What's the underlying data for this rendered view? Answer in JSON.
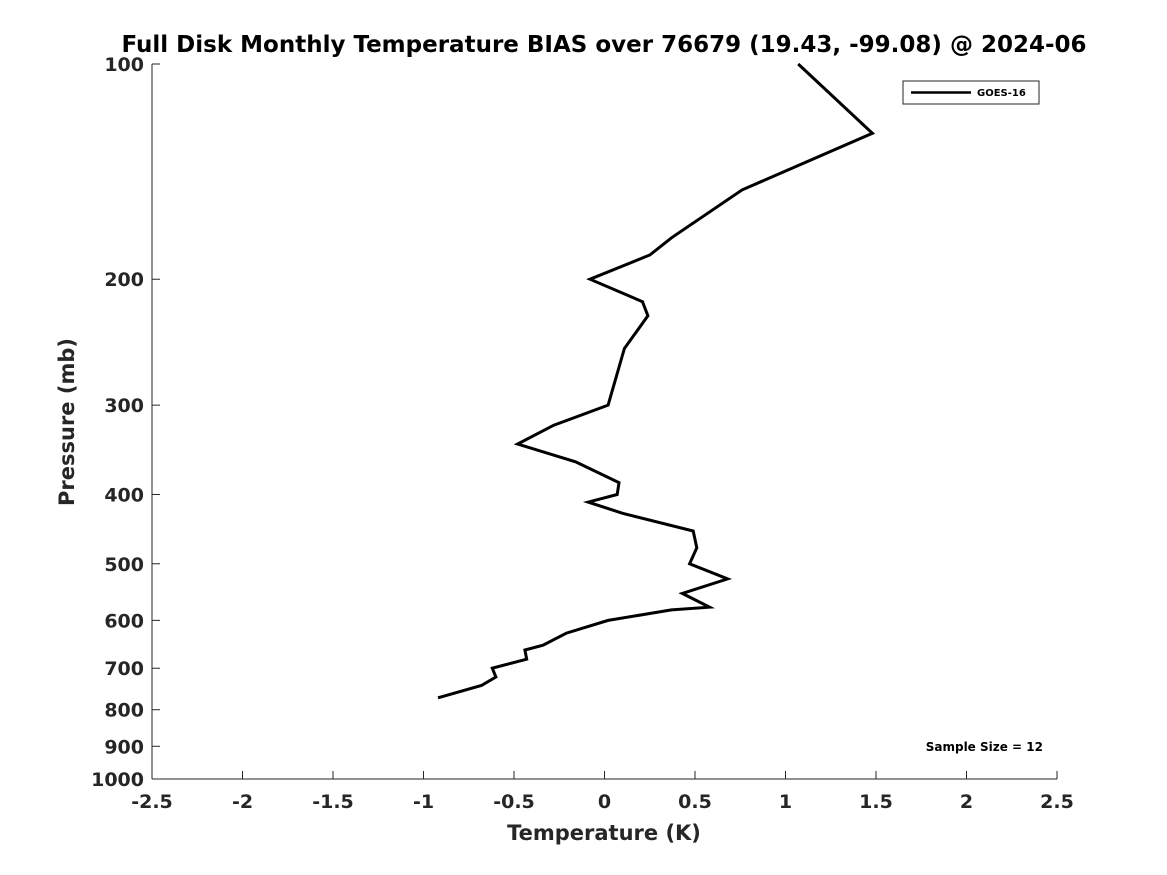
{
  "chart_data": {
    "type": "line",
    "title": "Full Disk Monthly Temperature BIAS over 76679 (19.43, -99.08) @ 2024-06",
    "xlabel": "Temperature (K)",
    "ylabel": "Pressure (mb)",
    "xlim": [
      -2.5,
      2.5
    ],
    "ylim": [
      100,
      1000
    ],
    "y_scale": "log",
    "y_reversed": true,
    "x_ticks": [
      -2.5,
      -2,
      -1.5,
      -1,
      -0.5,
      0,
      0.5,
      1,
      1.5,
      2,
      2.5
    ],
    "x_tick_labels": [
      "-2.5",
      "-2",
      "-1.5",
      "-1",
      "-0.5",
      "0",
      "0.5",
      "1",
      "1.5",
      "2",
      "2.5"
    ],
    "y_ticks": [
      100,
      200,
      300,
      400,
      500,
      600,
      700,
      800,
      900,
      1000
    ],
    "y_tick_labels": [
      "100",
      "200",
      "300",
      "400",
      "500",
      "600",
      "700",
      "800",
      "900",
      "1000"
    ],
    "grid": false,
    "legend": {
      "position": "top-right",
      "entries": [
        "GOES-16"
      ]
    },
    "annotation": "Sample Size = 12",
    "series": [
      {
        "name": "GOES-16",
        "color": "#000000",
        "points": [
          {
            "x": 1.07,
            "p": 100
          },
          {
            "x": 1.48,
            "p": 125
          },
          {
            "x": 0.76,
            "p": 150
          },
          {
            "x": 0.37,
            "p": 175
          },
          {
            "x": 0.25,
            "p": 185
          },
          {
            "x": -0.08,
            "p": 200
          },
          {
            "x": 0.21,
            "p": 215
          },
          {
            "x": 0.24,
            "p": 225
          },
          {
            "x": 0.11,
            "p": 250
          },
          {
            "x": 0.02,
            "p": 300
          },
          {
            "x": -0.28,
            "p": 320
          },
          {
            "x": -0.48,
            "p": 340
          },
          {
            "x": -0.16,
            "p": 360
          },
          {
            "x": 0.08,
            "p": 385
          },
          {
            "x": 0.07,
            "p": 400
          },
          {
            "x": -0.09,
            "p": 410
          },
          {
            "x": 0.1,
            "p": 425
          },
          {
            "x": 0.49,
            "p": 450
          },
          {
            "x": 0.51,
            "p": 475
          },
          {
            "x": 0.47,
            "p": 500
          },
          {
            "x": 0.68,
            "p": 525
          },
          {
            "x": 0.43,
            "p": 550
          },
          {
            "x": 0.58,
            "p": 575
          },
          {
            "x": 0.37,
            "p": 580
          },
          {
            "x": 0.02,
            "p": 600
          },
          {
            "x": -0.21,
            "p": 625
          },
          {
            "x": -0.34,
            "p": 650
          },
          {
            "x": -0.44,
            "p": 660
          },
          {
            "x": -0.43,
            "p": 680
          },
          {
            "x": -0.62,
            "p": 700
          },
          {
            "x": -0.6,
            "p": 720
          },
          {
            "x": -0.68,
            "p": 740
          },
          {
            "x": -0.92,
            "p": 770
          }
        ]
      }
    ]
  }
}
